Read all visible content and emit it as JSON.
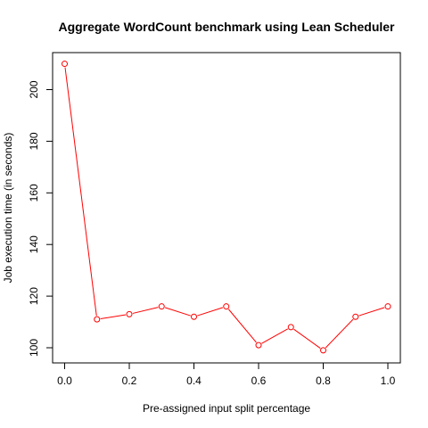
{
  "chart_data": {
    "type": "line",
    "title": "Aggregate WordCount benchmark using Lean Scheduler",
    "xlabel": "Pre-assigned input split percentage",
    "ylabel": "Job execution time (in seconds)",
    "x_ticks": [
      "0.0",
      "0.2",
      "0.4",
      "0.6",
      "0.8",
      "1.0"
    ],
    "y_ticks": [
      "100",
      "120",
      "140",
      "160",
      "180",
      "200"
    ],
    "xlim": [
      0,
      1
    ],
    "ylim": [
      95,
      213
    ],
    "grid": false,
    "series": [
      {
        "x": [
          0.0,
          0.1,
          0.2,
          0.3,
          0.4,
          0.5,
          0.6,
          0.7,
          0.8,
          0.9,
          1.0
        ],
        "y": [
          210,
          111,
          113,
          116,
          112,
          116,
          101,
          108,
          99,
          112,
          116
        ],
        "color": "#ff0000",
        "marker": "open-circle"
      }
    ]
  }
}
